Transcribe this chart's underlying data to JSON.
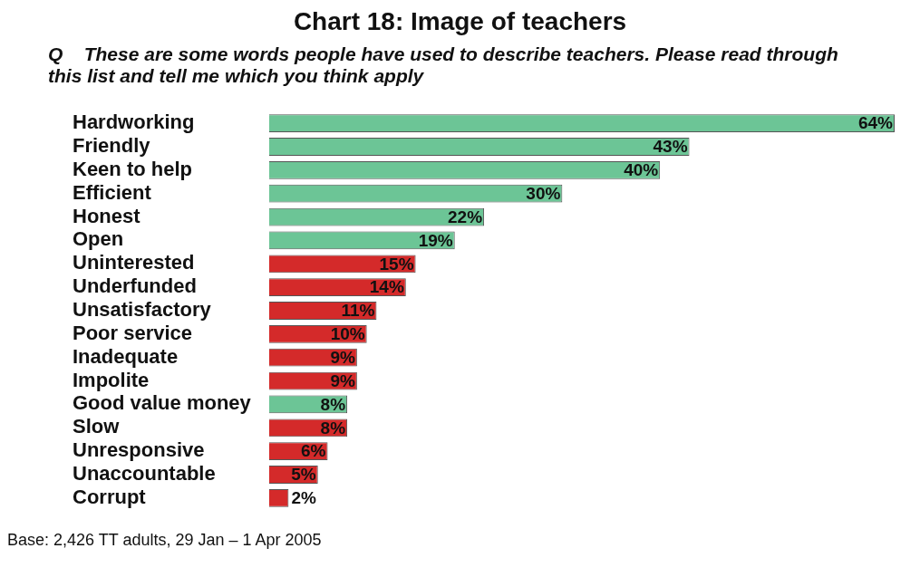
{
  "chart_data": {
    "type": "bar",
    "orientation": "horizontal",
    "title": "Chart 18: Image of teachers",
    "subtitle": "Q    These are some words people have used to describe teachers. Please read through this list and tell me which you think apply",
    "categories": [
      "Hardworking",
      "Friendly",
      "Keen to help",
      "Efficient",
      "Honest",
      "Open",
      "Uninterested",
      "Underfunded",
      "Unsatisfactory",
      "Poor service",
      "Inadequate",
      "Impolite",
      "Good value money",
      "Slow",
      "Unresponsive",
      "Unaccountable",
      "Corrupt"
    ],
    "values": [
      64,
      43,
      40,
      30,
      22,
      19,
      15,
      14,
      11,
      10,
      9,
      9,
      8,
      8,
      6,
      5,
      2
    ],
    "colors": [
      "#6cc596",
      "#6cc596",
      "#6cc596",
      "#6cc596",
      "#6cc596",
      "#6cc596",
      "#d42a2a",
      "#d42a2a",
      "#d42a2a",
      "#d42a2a",
      "#d42a2a",
      "#d42a2a",
      "#6cc596",
      "#d42a2a",
      "#d42a2a",
      "#d42a2a",
      "#d42a2a"
    ],
    "value_labels": [
      "64%",
      "43%",
      "40%",
      "30%",
      "22%",
      "19%",
      "15%",
      "14%",
      "11%",
      "10%",
      "9%",
      "9%",
      "8%",
      "8%",
      "6%",
      "5%",
      "2%"
    ],
    "annotations": [
      "Base: 2,426 TT adults, 29 Jan – 1 Apr 2005"
    ]
  }
}
